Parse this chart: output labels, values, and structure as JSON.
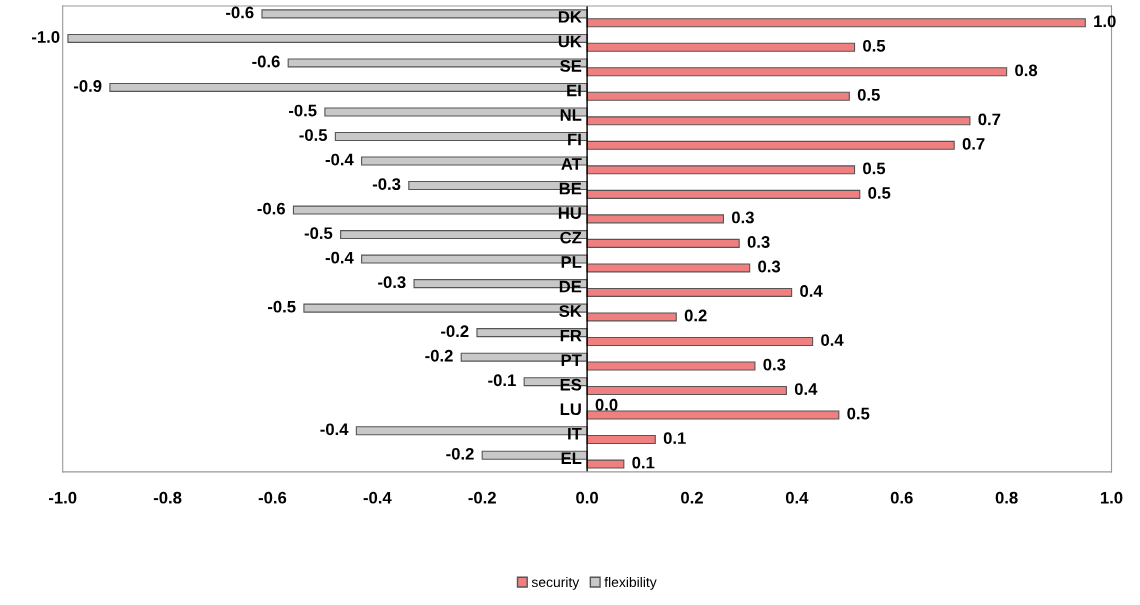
{
  "chart_data": {
    "type": "bar",
    "orientation": "horizontal",
    "categories": [
      "DK",
      "UK",
      "SE",
      "EI",
      "NL",
      "FI",
      "AT",
      "BE",
      "HU",
      "CZ",
      "PL",
      "DE",
      "SK",
      "FR",
      "PT",
      "ES",
      "LU",
      "IT",
      "EL"
    ],
    "series": [
      {
        "name": "security",
        "color": "#f08080",
        "values": [
          0.95,
          0.51,
          0.8,
          0.5,
          0.73,
          0.7,
          0.51,
          0.52,
          0.26,
          0.29,
          0.31,
          0.39,
          0.17,
          0.43,
          0.32,
          0.38,
          0.48,
          0.13,
          0.07
        ],
        "value_labels": [
          "1.0",
          "0.5",
          "0.8",
          "0.5",
          "0.7",
          "0.7",
          "0.5",
          "0.5",
          "0.3",
          "0.3",
          "0.3",
          "0.4",
          "0.2",
          "0.4",
          "0.3",
          "0.4",
          "0.5",
          "0.1",
          "0.1"
        ]
      },
      {
        "name": "flexibility",
        "color": "#c8c8c8",
        "values": [
          -0.62,
          -0.99,
          -0.57,
          -0.91,
          -0.5,
          -0.48,
          -0.43,
          -0.34,
          -0.56,
          -0.47,
          -0.43,
          -0.33,
          -0.54,
          -0.21,
          -0.24,
          -0.12,
          0,
          -0.44,
          -0.2
        ],
        "value_labels": [
          "-0.6",
          "-1.0",
          "-0.6",
          "-0.9",
          "-0.5",
          "-0.5",
          "-0.4",
          "-0.3",
          "-0.6",
          "-0.5",
          "-0.4",
          "-0.3",
          "-0.5",
          "-0.2",
          "-0.2",
          "-0.1",
          "0.0",
          "-0.4",
          "-0.2"
        ]
      }
    ],
    "xlim": [
      -1.0,
      1.0
    ],
    "xticks": [
      {
        "value": -1.0,
        "label": "-1.0"
      },
      {
        "value": -0.8,
        "label": "-0.8"
      },
      {
        "value": -0.6,
        "label": "-0.6"
      },
      {
        "value": -0.4,
        "label": "-0.4"
      },
      {
        "value": -0.2,
        "label": "-0.2"
      },
      {
        "value": 0,
        "label": "0.0"
      },
      {
        "value": 0.2,
        "label": "0.2"
      },
      {
        "value": 0.4,
        "label": "0.4"
      },
      {
        "value": 0.6,
        "label": "0.6"
      },
      {
        "value": 0.8,
        "label": "0.8"
      },
      {
        "value": 1.0,
        "label": "1.0"
      }
    ],
    "grid": false,
    "legend": "bottom"
  }
}
